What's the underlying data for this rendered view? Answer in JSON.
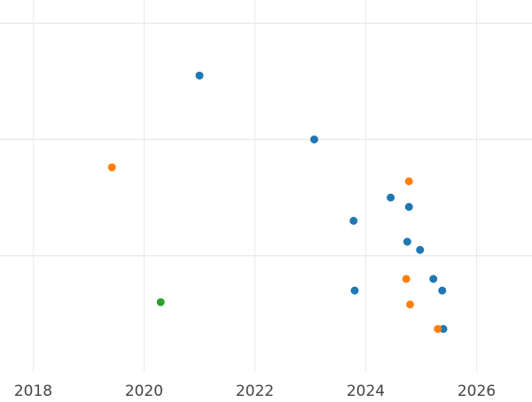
{
  "chart_data": {
    "type": "scatter",
    "title": "",
    "xlabel": "",
    "ylabel": "",
    "xlim": [
      2017.4,
      2027.0
    ],
    "ylim": [
      0.0,
      3.2
    ],
    "x_ticks": [
      2018,
      2020,
      2022,
      2024,
      2026
    ],
    "x_tick_labels": [
      "2018",
      "2020",
      "2022",
      "2024",
      "2026"
    ],
    "y_gridlines": [
      1.0,
      2.0,
      3.0
    ],
    "grid": true,
    "legend": "none",
    "series": [
      {
        "color": "#1f77b4",
        "x": [
          2021.0,
          2023.07,
          2024.45,
          2024.78,
          2023.78,
          2024.75,
          2024.98,
          2023.8,
          2025.22,
          2025.38,
          2025.4
        ],
        "y": [
          2.55,
          2.0,
          1.5,
          1.42,
          1.3,
          1.12,
          1.05,
          0.7,
          0.8,
          0.7,
          0.37
        ]
      },
      {
        "color": "#ff7f0e",
        "x": [
          2019.42,
          2024.78,
          2024.73,
          2024.8,
          2025.3
        ],
        "y": [
          1.76,
          1.64,
          0.8,
          0.58,
          0.37
        ]
      },
      {
        "color": "#2ca02c",
        "x": [
          2020.3
        ],
        "y": [
          0.6
        ]
      }
    ]
  }
}
